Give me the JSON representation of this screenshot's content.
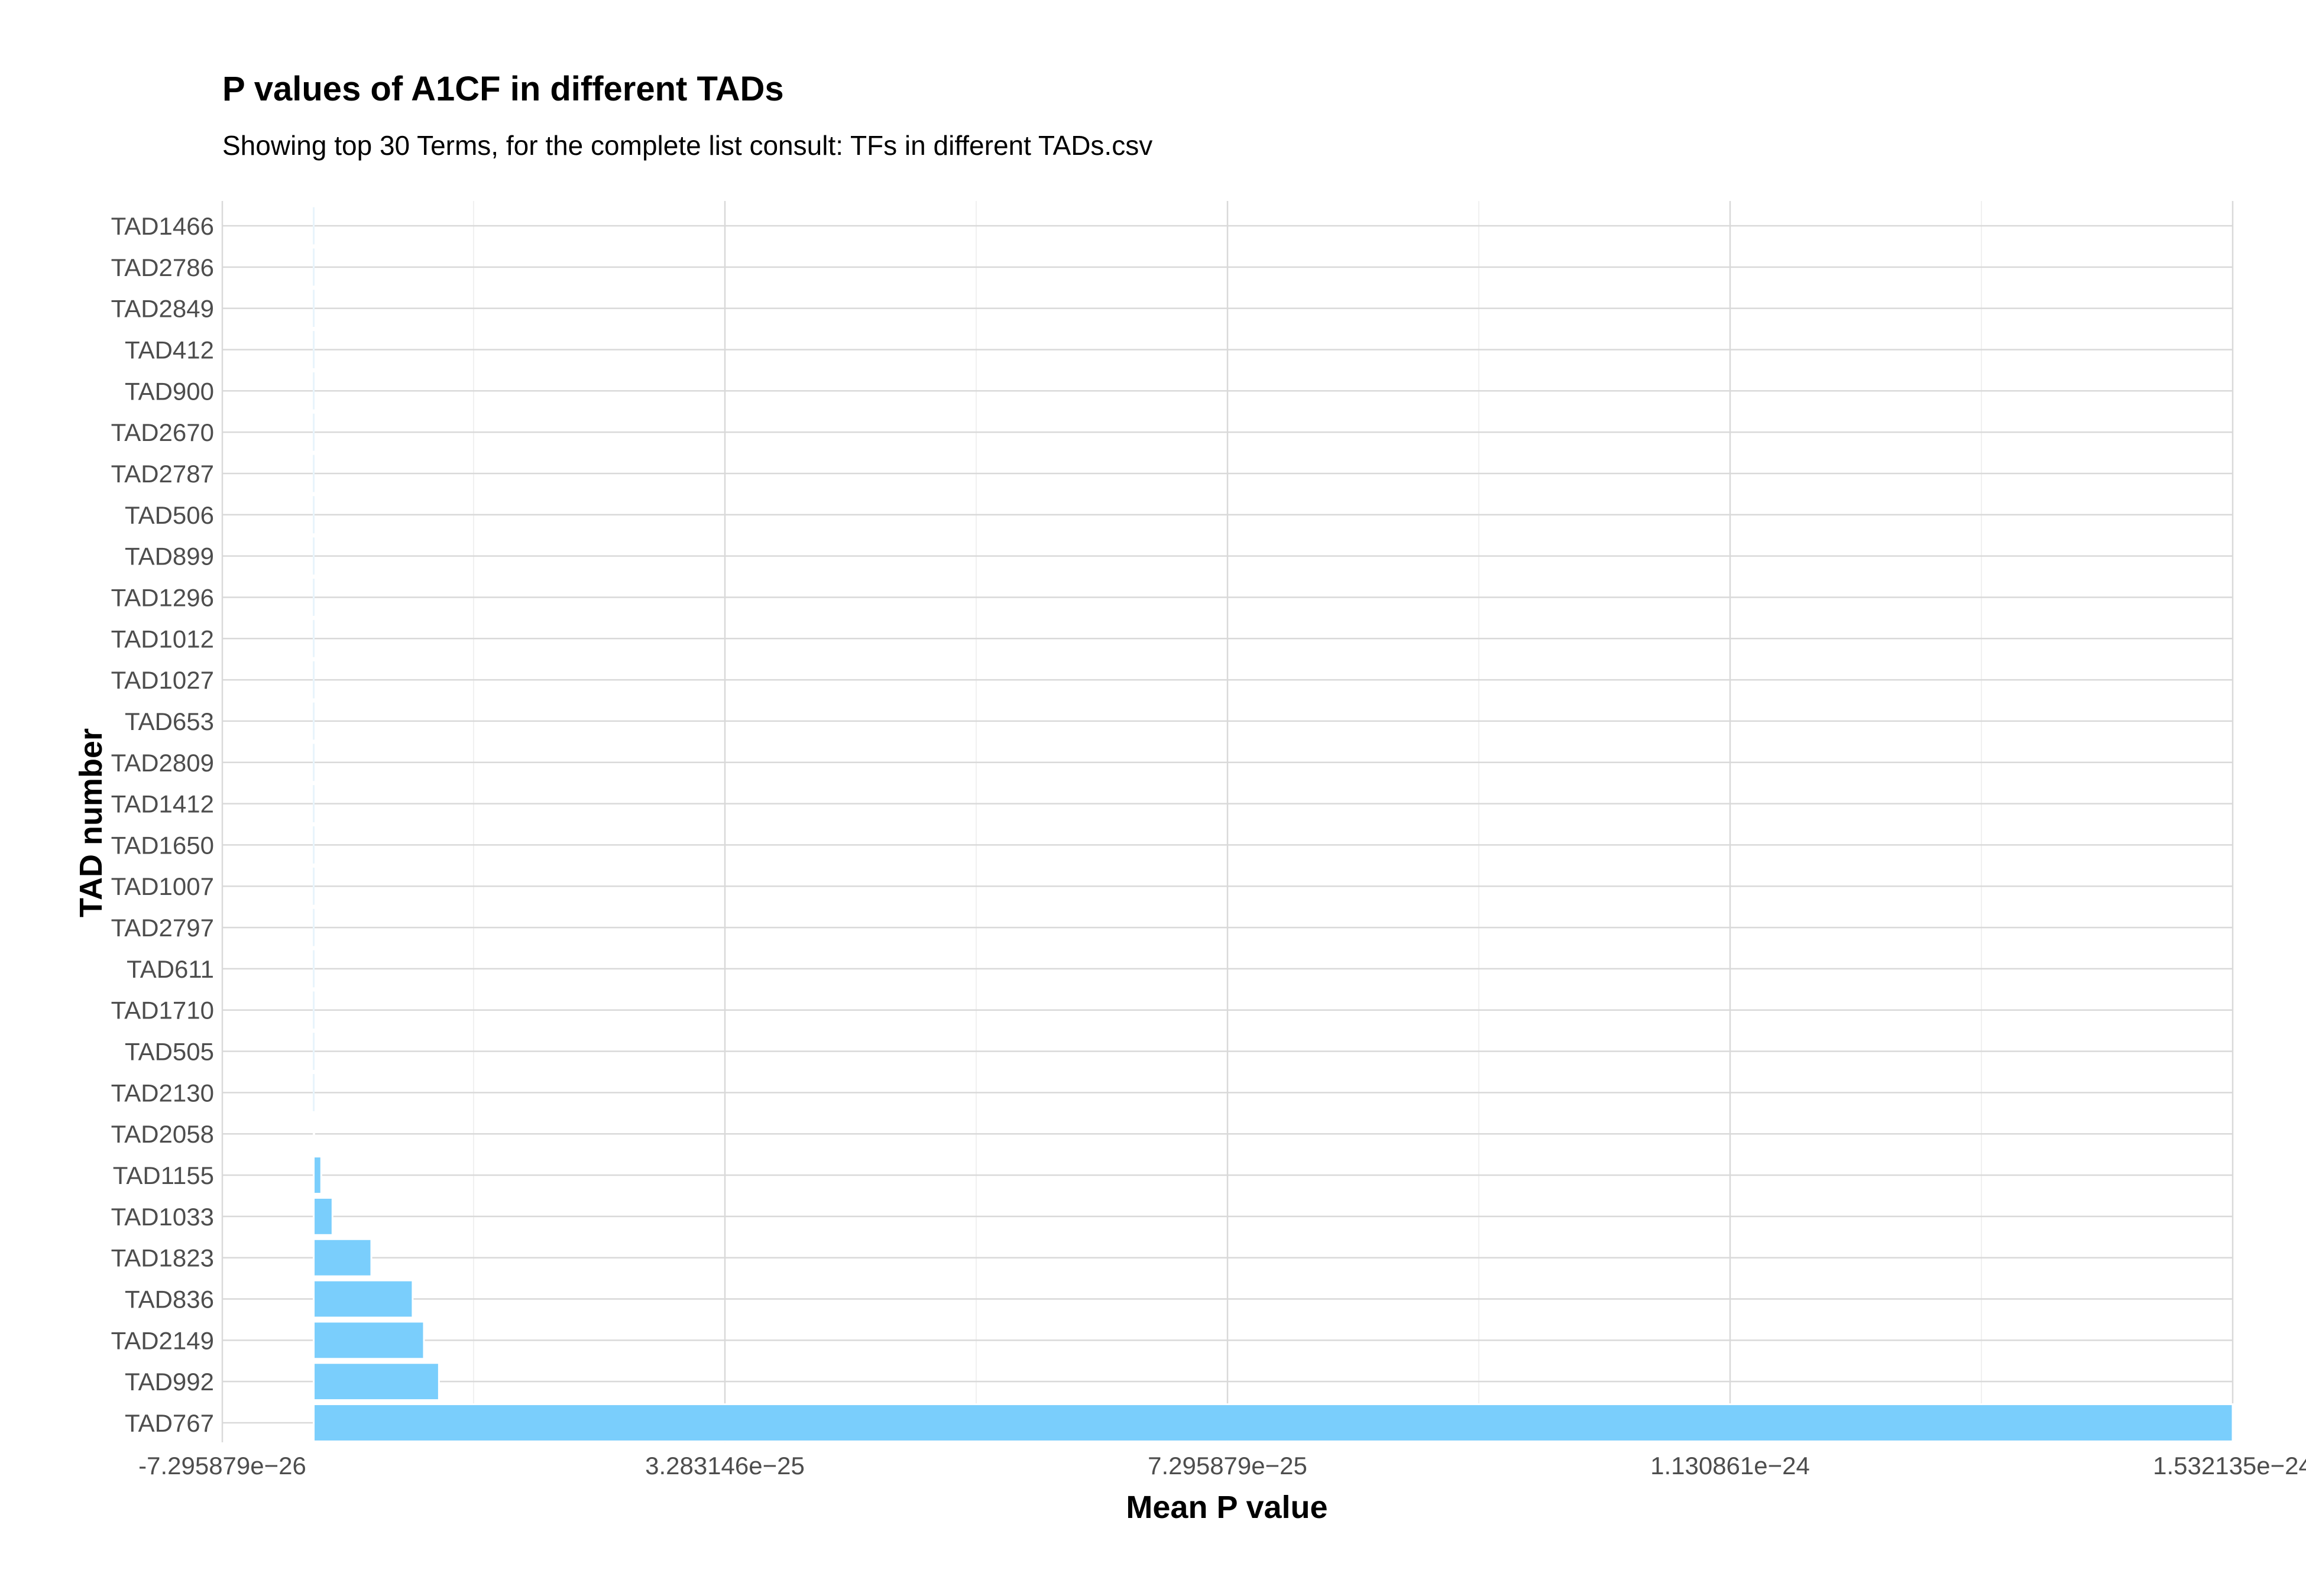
{
  "chart_data": {
    "type": "bar",
    "orientation": "horizontal",
    "title": "P values of A1CF in different TADs",
    "subtitle": "Showing top 30 Terms, for the complete list consult: TFs in different TADs.csv",
    "xlabel": "Mean P value",
    "ylabel": "TAD number",
    "bar_color": "#7acefc",
    "categories": [
      "TAD1466",
      "TAD2786",
      "TAD2849",
      "TAD412",
      "TAD900",
      "TAD2670",
      "TAD2787",
      "TAD506",
      "TAD899",
      "TAD1296",
      "TAD1012",
      "TAD1027",
      "TAD653",
      "TAD2809",
      "TAD1412",
      "TAD1650",
      "TAD1007",
      "TAD2797",
      "TAD611",
      "TAD1710",
      "TAD505",
      "TAD2130",
      "TAD2058",
      "TAD1155",
      "TAD1033",
      "TAD1823",
      "TAD836",
      "TAD2149",
      "TAD992",
      "TAD767"
    ],
    "values": [
      0,
      0,
      0,
      0,
      0,
      0,
      0,
      0,
      0,
      0,
      0,
      0,
      0,
      0,
      0,
      1e-30,
      2e-30,
      5e-30,
      1e-29,
      2e-29,
      5e-29,
      1e-28,
      4e-28,
      6e-27,
      1.5e-26,
      4.6e-26,
      7.9e-26,
      8.8e-26,
      1e-25,
      1.532135e-24
    ],
    "xlim": [
      -7.295879e-26,
      1.532135e-24
    ],
    "x_ticks": [
      -7.295879e-26,
      3.283146e-25,
      7.295879e-25,
      1.130861e-24,
      1.532135e-24
    ],
    "x_tick_labels": [
      "-7.295879e−26",
      "3.283146e−25",
      "7.295879e−25",
      "1.130861e−24",
      "1.532135e−24"
    ],
    "grid": true
  }
}
